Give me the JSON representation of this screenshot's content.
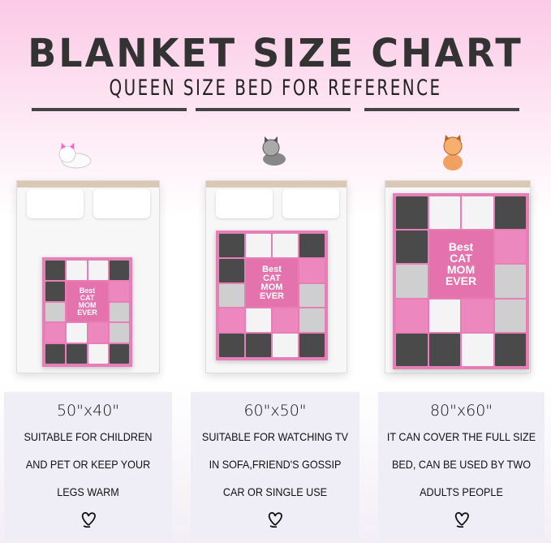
{
  "header": {
    "title": "BLANKET SIZE CHART",
    "subtitle": "QUEEN SIZE BED FOR REFERENCE"
  },
  "blanket_print": {
    "line1": "Best",
    "line2": "CAT",
    "line3": "MOM",
    "line4": "EVER"
  },
  "colors": {
    "pink": "#e67fb5",
    "dark": "#4a4a4a",
    "card": "#efedf5"
  },
  "sizes": [
    {
      "size": "50\"x40\"",
      "lines": [
        "SUITABLE FOR CHILDREN",
        "AND PET OR KEEP YOUR",
        "LEGS WARM"
      ],
      "icon": "heart-icon"
    },
    {
      "size": "60\"x50\"",
      "lines": [
        "SUITABLE FOR WATCHING TV",
        "IN SOFA,FRIEND'S GOSSIP",
        "CAR OR SINGLE USE"
      ],
      "icon": "heart-icon"
    },
    {
      "size": "80\"x60\"",
      "lines": [
        "IT CAN COVER THE FULL SIZE",
        "BED, CAN BE USED BY TWO",
        "ADULTS PEOPLE"
      ],
      "icon": "heart-icon"
    }
  ]
}
